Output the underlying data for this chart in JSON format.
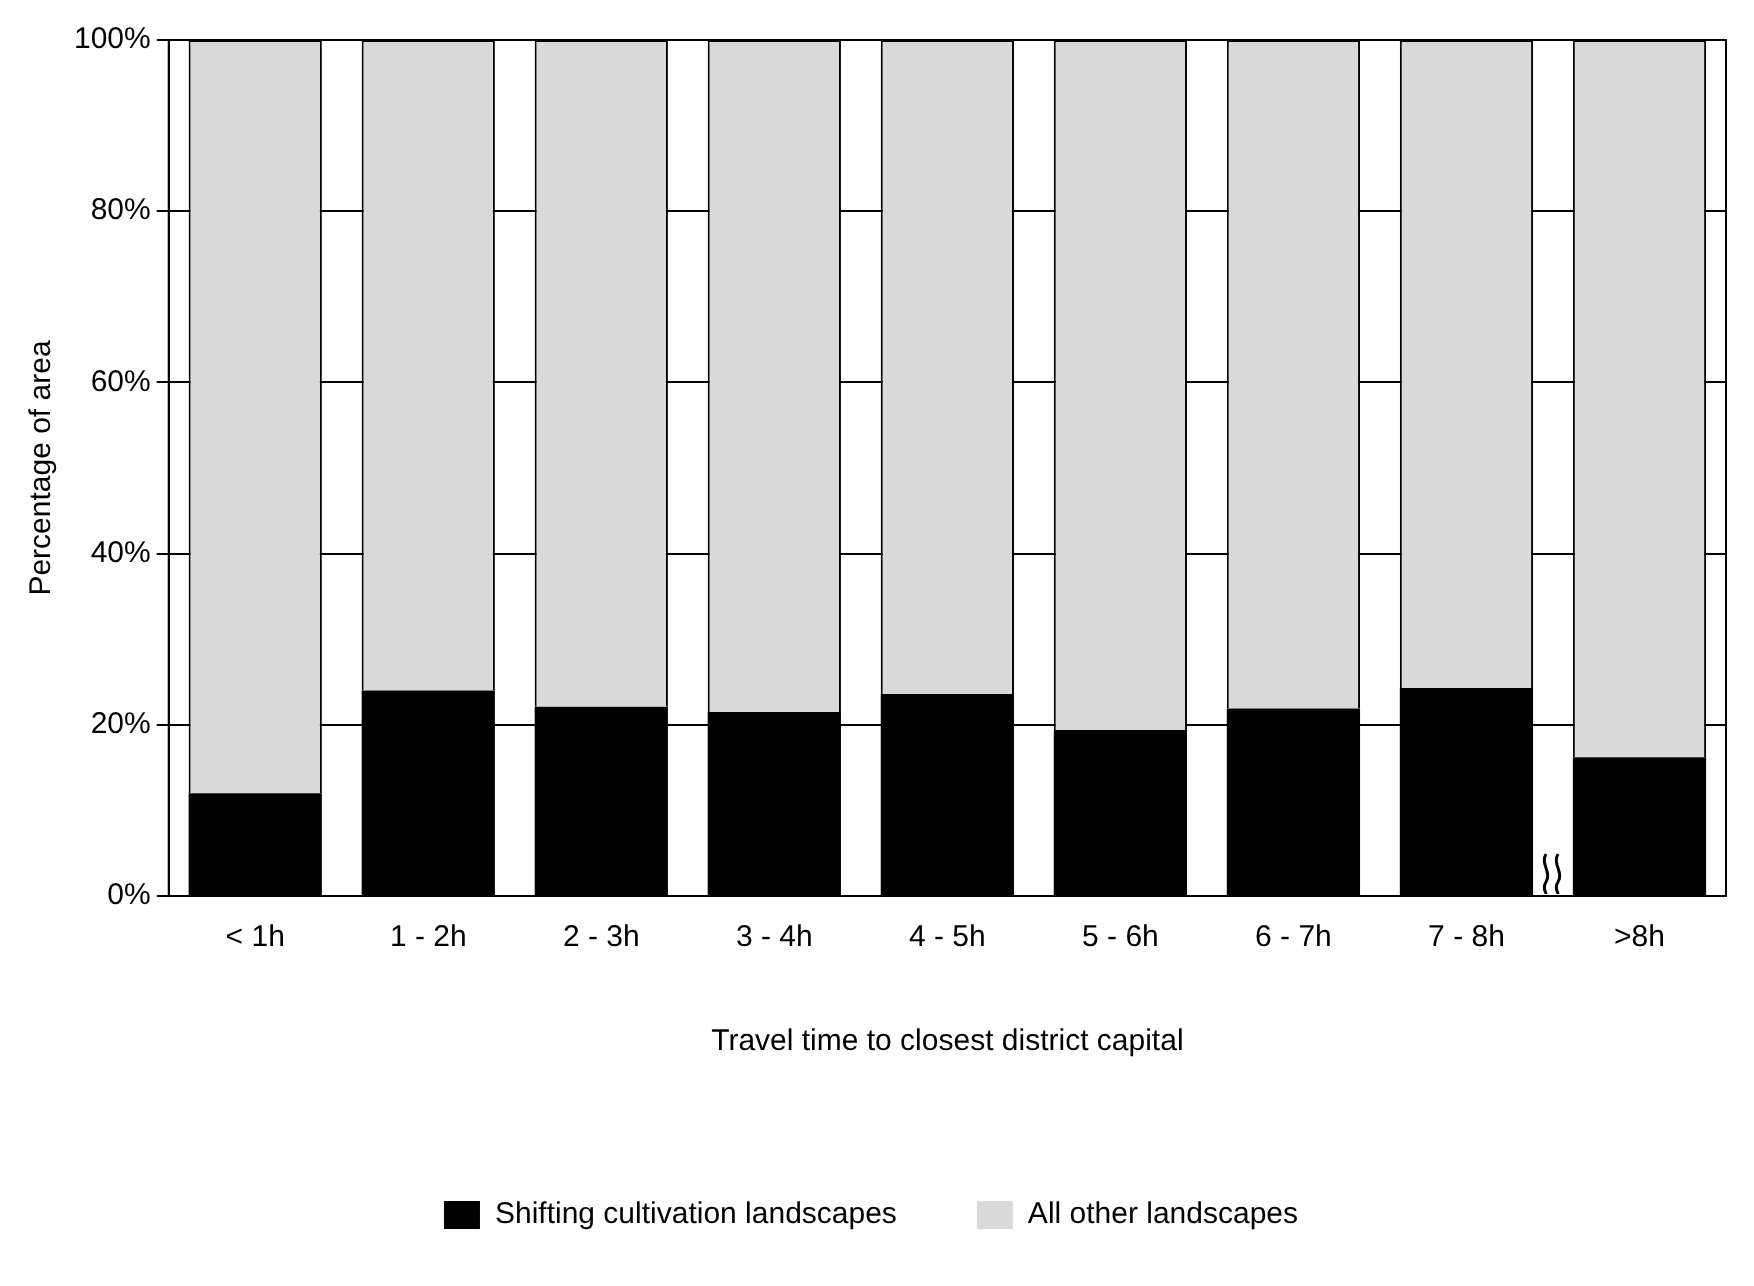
{
  "chart_data": {
    "type": "bar",
    "stacked": true,
    "xlabel": "Travel time to closest district capital",
    "ylabel": "Percentage of area",
    "categories": [
      "< 1h",
      "1 - 2h",
      "2 - 3h",
      "3 - 4h",
      "4 - 5h",
      "5 - 6h",
      "6 - 7h",
      "7 - 8h",
      ">8h"
    ],
    "series": [
      {
        "name": "Shifting cultivation landscapes",
        "color": "#000000",
        "values": [
          12,
          24,
          22.1,
          21.5,
          23.6,
          19.4,
          21.9,
          24.3,
          16.2
        ]
      },
      {
        "name": "All other landscapes",
        "color": "#d9d9d9",
        "values": [
          88,
          76,
          77.9,
          78.5,
          76.4,
          80.6,
          78.1,
          75.7,
          83.8
        ]
      }
    ],
    "ylim": [
      0,
      100
    ],
    "yticks": [
      {
        "value": 0,
        "label": "0%"
      },
      {
        "value": 20,
        "label": "20%"
      },
      {
        "value": 40,
        "label": "40%"
      },
      {
        "value": 60,
        "label": "60%"
      },
      {
        "value": 80,
        "label": "80%"
      },
      {
        "value": 100,
        "label": "100%"
      }
    ],
    "grid": "y",
    "legend": "bottom"
  }
}
